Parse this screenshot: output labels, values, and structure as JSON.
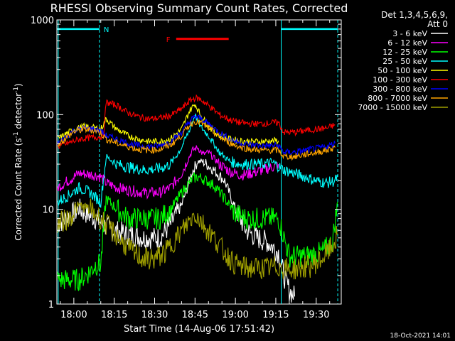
{
  "chart_data": {
    "type": "line",
    "title": "RHESSI Observing Summary Count Rates, Corrected",
    "xlabel": "Start Time (14-Aug-06 17:51:42)",
    "ylabel": "Corrected Count Rate (s-1 detector-1)",
    "ylabel_parts": {
      "a": "Corrected Count Rate (s",
      "b": "-1",
      "c": " detector",
      "d": "-1",
      "e": ")"
    },
    "y_scale": "log",
    "ylim": [
      1,
      1000
    ],
    "xlim_minutes": [
      -6.3,
      99.3
    ],
    "x_ticks": [
      {
        "m": 0,
        "label": "18:00"
      },
      {
        "m": 15,
        "label": "18:15"
      },
      {
        "m": 30,
        "label": "18:30"
      },
      {
        "m": 45,
        "label": "18:45"
      },
      {
        "m": 60,
        "label": "19:00"
      },
      {
        "m": 75,
        "label": "19:15"
      },
      {
        "m": 90,
        "label": "19:30"
      }
    ],
    "y_ticks": [
      {
        "v": 1,
        "label": "1"
      },
      {
        "v": 10,
        "label": "10"
      },
      {
        "v": 100,
        "label": "100"
      },
      {
        "v": 1000,
        "label": "1000"
      }
    ],
    "legend_header": [
      "Det 1,3,4,5,6,9,",
      "Att 0"
    ],
    "legend_position": "right",
    "footer": "18-Oct-2021 14:01",
    "annotations": [
      {
        "label": "N",
        "color": "#00ffff",
        "x_range": [
          -6.3,
          9.5
        ],
        "level": 800
      },
      {
        "label": "",
        "color": "#00ffff",
        "x_range": [
          77,
          98
        ],
        "level": 800
      },
      {
        "label": "F",
        "color": "#ff0000",
        "x_range": [
          38,
          57.5
        ],
        "level": 630
      }
    ],
    "vlines": [
      {
        "m": -5.8,
        "color": "#00ffff",
        "style": "solid"
      },
      {
        "m": 9.5,
        "color": "#00ffff",
        "style": "dashed"
      },
      {
        "m": 77,
        "color": "#00ffff",
        "style": "solid"
      },
      {
        "m": 98,
        "color": "#00ffff",
        "style": "dashed"
      }
    ],
    "series": [
      {
        "name": "3 - 6 keV",
        "color": "#ffffff",
        "points": [
          [
            -6,
            7
          ],
          [
            2,
            10
          ],
          [
            8,
            8
          ],
          [
            14,
            6
          ],
          [
            20,
            5.5
          ],
          [
            26,
            5
          ],
          [
            32,
            5
          ],
          [
            36,
            7
          ],
          [
            40,
            11
          ],
          [
            44,
            25
          ],
          [
            46,
            32
          ],
          [
            48,
            32
          ],
          [
            52,
            26
          ],
          [
            56,
            20
          ],
          [
            60,
            10
          ],
          [
            64,
            6
          ],
          [
            68,
            5
          ],
          [
            72,
            4.5
          ],
          [
            76,
            3.5
          ],
          [
            78,
            2
          ],
          [
            80,
            1.4
          ],
          [
            82,
            1.2
          ]
        ]
      },
      {
        "name": "6 - 12 keV",
        "color": "#ff00ff",
        "points": [
          [
            -6,
            17
          ],
          [
            2,
            24
          ],
          [
            8,
            23
          ],
          [
            10,
            22
          ],
          [
            12,
            19
          ],
          [
            16,
            17
          ],
          [
            20,
            16
          ],
          [
            26,
            15
          ],
          [
            32,
            15
          ],
          [
            36,
            17
          ],
          [
            40,
            24
          ],
          [
            44,
            42
          ],
          [
            46,
            45
          ],
          [
            48,
            38
          ],
          [
            50,
            40
          ],
          [
            54,
            30
          ],
          [
            58,
            25
          ],
          [
            62,
            23
          ],
          [
            66,
            24
          ],
          [
            70,
            26
          ],
          [
            74,
            28
          ],
          [
            76,
            30
          ]
        ]
      },
      {
        "name": "12 - 25 keV",
        "color": "#00ff00",
        "points": [
          [
            -6,
            1.8
          ],
          [
            2,
            1.8
          ],
          [
            6,
            2.2
          ],
          [
            8,
            2.6
          ],
          [
            10,
            2.6
          ],
          [
            12,
            13
          ],
          [
            16,
            10
          ],
          [
            20,
            8
          ],
          [
            26,
            8
          ],
          [
            32,
            8
          ],
          [
            36,
            10
          ],
          [
            40,
            15
          ],
          [
            44,
            21
          ],
          [
            46,
            22
          ],
          [
            48,
            21
          ],
          [
            52,
            18
          ],
          [
            56,
            13
          ],
          [
            60,
            9
          ],
          [
            64,
            8
          ],
          [
            70,
            8
          ],
          [
            76,
            8
          ],
          [
            80,
            3.2
          ],
          [
            86,
            3.2
          ],
          [
            92,
            3.5
          ],
          [
            96,
            4.5
          ],
          [
            98,
            12
          ]
        ]
      },
      {
        "name": "25 - 50 keV",
        "color": "#00ffff",
        "points": [
          [
            -6,
            12
          ],
          [
            -2,
            14
          ],
          [
            2,
            17
          ],
          [
            6,
            15
          ],
          [
            10,
            12
          ],
          [
            12,
            36
          ],
          [
            16,
            30
          ],
          [
            20,
            28
          ],
          [
            26,
            26
          ],
          [
            32,
            27
          ],
          [
            36,
            30
          ],
          [
            40,
            45
          ],
          [
            43,
            70
          ],
          [
            45,
            100
          ],
          [
            47,
            75
          ],
          [
            50,
            60
          ],
          [
            54,
            40
          ],
          [
            58,
            32
          ],
          [
            62,
            30
          ],
          [
            66,
            30
          ],
          [
            70,
            30
          ],
          [
            74,
            31
          ],
          [
            78,
            26
          ],
          [
            82,
            24
          ],
          [
            86,
            22
          ],
          [
            90,
            20
          ],
          [
            94,
            19
          ],
          [
            97,
            20
          ],
          [
            98,
            22
          ]
        ]
      },
      {
        "name": "50 - 100 keV",
        "color": "#ffff00",
        "points": [
          [
            -6,
            55
          ],
          [
            0,
            70
          ],
          [
            4,
            75
          ],
          [
            8,
            72
          ],
          [
            10,
            70
          ],
          [
            12,
            90
          ],
          [
            16,
            70
          ],
          [
            20,
            60
          ],
          [
            24,
            55
          ],
          [
            28,
            52
          ],
          [
            32,
            52
          ],
          [
            36,
            56
          ],
          [
            40,
            70
          ],
          [
            43,
            110
          ],
          [
            45,
            130
          ],
          [
            47,
            100
          ],
          [
            50,
            75
          ],
          [
            54,
            60
          ],
          [
            58,
            55
          ],
          [
            62,
            53
          ],
          [
            66,
            52
          ],
          [
            70,
            52
          ],
          [
            74,
            53
          ],
          [
            76,
            53
          ]
        ]
      },
      {
        "name": "100 - 300 keV",
        "color": "#ff0000",
        "points": [
          [
            -6,
            46
          ],
          [
            -2,
            50
          ],
          [
            2,
            55
          ],
          [
            6,
            57
          ],
          [
            9,
            58
          ],
          [
            11,
            60
          ],
          [
            12,
            135
          ],
          [
            16,
            125
          ],
          [
            20,
            105
          ],
          [
            24,
            95
          ],
          [
            28,
            90
          ],
          [
            32,
            92
          ],
          [
            36,
            98
          ],
          [
            40,
            115
          ],
          [
            43,
            140
          ],
          [
            45,
            150
          ],
          [
            47,
            145
          ],
          [
            50,
            125
          ],
          [
            54,
            100
          ],
          [
            58,
            88
          ],
          [
            62,
            82
          ],
          [
            66,
            80
          ],
          [
            70,
            80
          ],
          [
            74,
            82
          ],
          [
            76,
            82
          ],
          [
            78,
            65
          ],
          [
            82,
            65
          ],
          [
            86,
            68
          ],
          [
            90,
            70
          ],
          [
            94,
            72
          ],
          [
            97,
            78
          ]
        ]
      },
      {
        "name": "300 - 800 keV",
        "color": "#0000ff",
        "points": [
          [
            -6,
            50
          ],
          [
            0,
            68
          ],
          [
            4,
            72
          ],
          [
            8,
            70
          ],
          [
            10,
            67
          ],
          [
            12,
            60
          ],
          [
            16,
            55
          ],
          [
            20,
            50
          ],
          [
            24,
            47
          ],
          [
            28,
            46
          ],
          [
            32,
            47
          ],
          [
            36,
            52
          ],
          [
            40,
            65
          ],
          [
            43,
            85
          ],
          [
            45,
            95
          ],
          [
            47,
            92
          ],
          [
            50,
            80
          ],
          [
            54,
            65
          ],
          [
            58,
            55
          ],
          [
            62,
            50
          ],
          [
            66,
            48
          ],
          [
            70,
            47
          ],
          [
            74,
            47
          ],
          [
            76,
            47
          ],
          [
            78,
            40
          ],
          [
            82,
            40
          ],
          [
            86,
            42
          ],
          [
            90,
            44
          ],
          [
            94,
            46
          ],
          [
            97,
            50
          ]
        ]
      },
      {
        "name": "800 - 7000 keV",
        "color": "#ffa500",
        "points": [
          [
            -6,
            48
          ],
          [
            0,
            66
          ],
          [
            4,
            70
          ],
          [
            8,
            68
          ],
          [
            10,
            64
          ],
          [
            12,
            55
          ],
          [
            16,
            50
          ],
          [
            20,
            46
          ],
          [
            24,
            43
          ],
          [
            28,
            42
          ],
          [
            32,
            43
          ],
          [
            36,
            48
          ],
          [
            40,
            60
          ],
          [
            43,
            78
          ],
          [
            45,
            85
          ],
          [
            47,
            82
          ],
          [
            50,
            72
          ],
          [
            54,
            58
          ],
          [
            58,
            50
          ],
          [
            62,
            45
          ],
          [
            66,
            43
          ],
          [
            70,
            42
          ],
          [
            74,
            42
          ],
          [
            76,
            42
          ],
          [
            78,
            36
          ],
          [
            82,
            36
          ],
          [
            86,
            38
          ],
          [
            90,
            40
          ],
          [
            94,
            42
          ],
          [
            97,
            45
          ]
        ]
      },
      {
        "name": "7000 - 15000 keV",
        "color": "#a0a000",
        "points": [
          [
            -6,
            7
          ],
          [
            -2,
            8
          ],
          [
            2,
            11
          ],
          [
            6,
            10
          ],
          [
            10,
            8
          ],
          [
            14,
            6
          ],
          [
            18,
            4.5
          ],
          [
            22,
            3.5
          ],
          [
            26,
            3
          ],
          [
            30,
            3
          ],
          [
            34,
            3.5
          ],
          [
            38,
            5
          ],
          [
            42,
            7
          ],
          [
            45,
            9
          ],
          [
            48,
            7
          ],
          [
            52,
            5
          ],
          [
            56,
            3.5
          ],
          [
            60,
            2.6
          ],
          [
            64,
            2.4
          ],
          [
            68,
            2.4
          ],
          [
            72,
            2.4
          ],
          [
            76,
            2.5
          ],
          [
            80,
            2.3
          ],
          [
            84,
            2.4
          ],
          [
            88,
            2.5
          ],
          [
            92,
            3
          ],
          [
            96,
            4
          ],
          [
            98,
            5.5
          ]
        ]
      }
    ]
  }
}
